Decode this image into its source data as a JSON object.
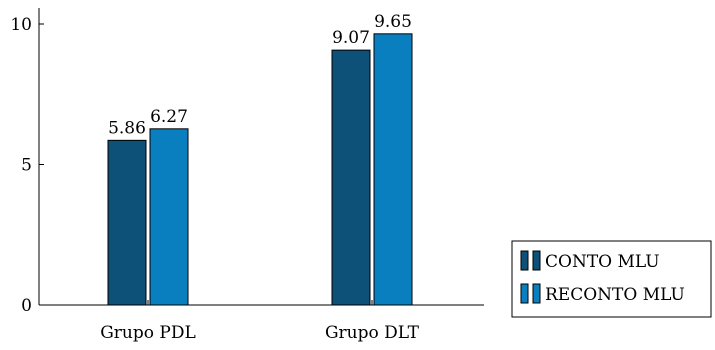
{
  "chart_data": {
    "type": "bar",
    "categories": [
      "Grupo PDL",
      "Grupo DLT"
    ],
    "series": [
      {
        "name": "CONTO MLU",
        "values": [
          5.86,
          6.27
        ],
        "color": "#0d5078"
      },
      {
        "name": "RECONTO MLU",
        "values": [
          9.07,
          9.65
        ],
        "color": "#0a7fc0"
      }
    ],
    "yticks": [
      0,
      5,
      10
    ],
    "ylim": [
      0,
      10
    ],
    "grid": false,
    "legend_position": "bottom-right"
  },
  "labels": {
    "bar_values": [
      "5.86",
      "6.27",
      "9.07",
      "9.65"
    ]
  }
}
